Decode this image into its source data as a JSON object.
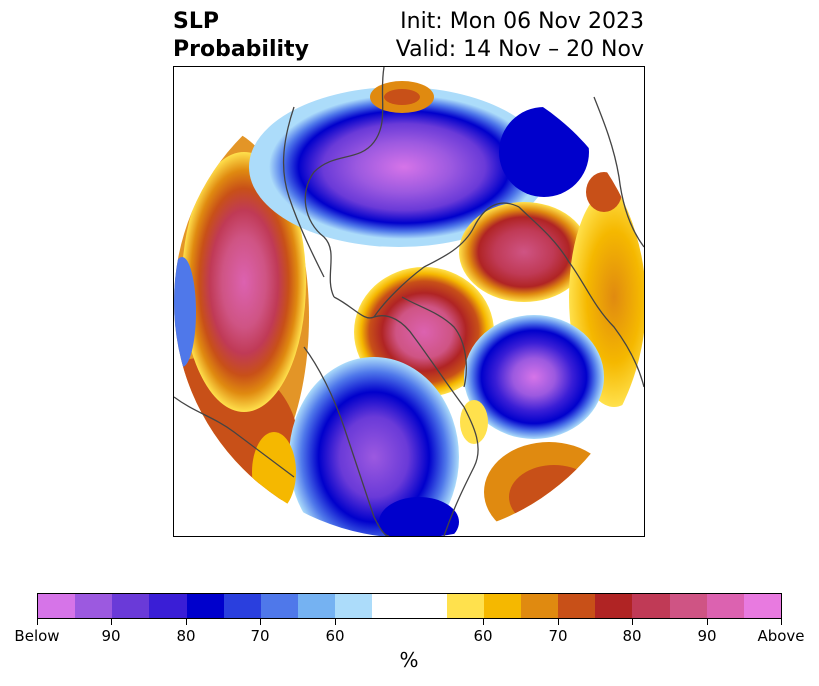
{
  "title": {
    "left_line1": "SLP",
    "left_line2": "Probability",
    "right_line1": "Init: Mon 06 Nov 2023",
    "right_line2": "Valid: 14 Nov – 20 Nov"
  },
  "colorbar": {
    "unit": "%",
    "below_colors": [
      "#d674e8",
      "#9c59e0",
      "#6a3ad8",
      "#3a1ed6",
      "#0000cc",
      "#2a3fde",
      "#4f78ea",
      "#75b2f2",
      "#acdcfa"
    ],
    "neutral_color": "#ffffff",
    "above_colors": [
      "#ffe14d",
      "#f5b800",
      "#e08a10",
      "#c85018",
      "#b02424",
      "#c03a56",
      "#cf5484",
      "#dc62b0",
      "#e87ae0"
    ],
    "tick_labels": [
      "Below",
      "90",
      "80",
      "70",
      "60",
      "60",
      "70",
      "80",
      "90",
      "Above"
    ]
  },
  "map": {
    "projection": "north-polar-stereographic",
    "palette": {
      "coast": "#444444"
    }
  }
}
